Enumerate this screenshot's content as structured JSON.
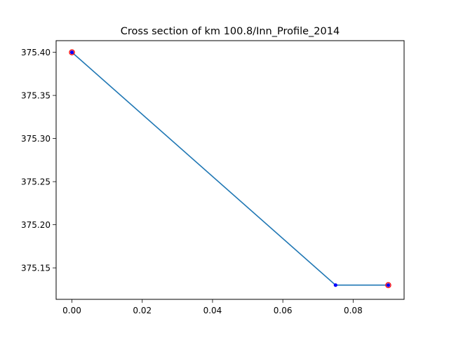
{
  "chart_data": {
    "type": "line",
    "title": "Cross section of km 100.8/Inn_Profile_2014",
    "xlabel": "",
    "ylabel": "",
    "xlim": [
      -0.0045,
      0.0945
    ],
    "ylim": [
      375.1135,
      375.4135
    ],
    "x_ticks": [
      {
        "value": 0.0,
        "label": "0.00"
      },
      {
        "value": 0.02,
        "label": "0.02"
      },
      {
        "value": 0.04,
        "label": "0.04"
      },
      {
        "value": 0.06,
        "label": "0.06"
      },
      {
        "value": 0.08,
        "label": "0.08"
      }
    ],
    "y_ticks": [
      {
        "value": 375.15,
        "label": "375.15"
      },
      {
        "value": 375.2,
        "label": "375.20"
      },
      {
        "value": 375.25,
        "label": "375.25"
      },
      {
        "value": 375.3,
        "label": "375.30"
      },
      {
        "value": 375.35,
        "label": "375.35"
      },
      {
        "value": 375.4,
        "label": "375.40"
      }
    ],
    "grid": false,
    "series": [
      {
        "x": [
          0.0,
          0.075,
          0.09
        ],
        "y": [
          375.4,
          375.13,
          375.13
        ],
        "line_color": "#1f77b4",
        "marker_color": "#0000ff"
      }
    ],
    "highlight_points": {
      "x": [
        0.0,
        0.09
      ],
      "y": [
        375.4,
        375.13
      ],
      "color": "#ff0000"
    }
  }
}
